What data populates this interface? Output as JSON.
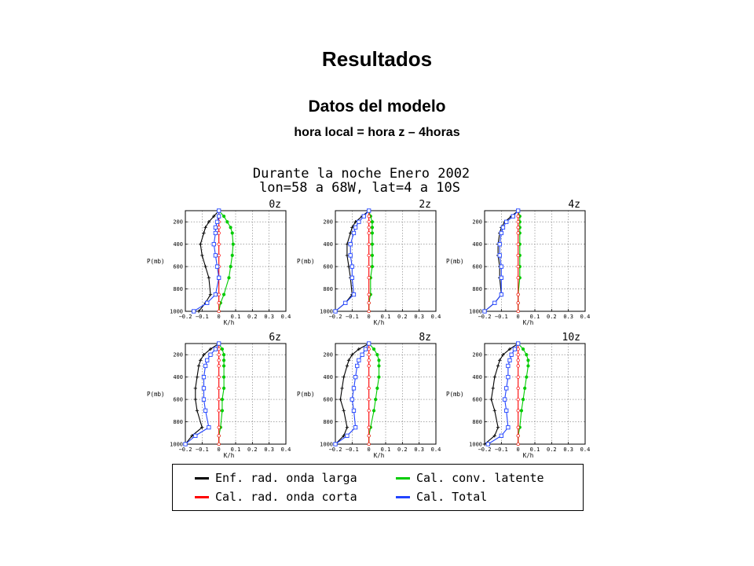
{
  "slide": {
    "title": "Resultados",
    "subtitle": "Datos del modelo",
    "note": "hora local = hora z – 4horas"
  },
  "figure": {
    "header_line1": "Durante la noche Enero 2002",
    "header_line2": "lon=58 a 68W, lat=4 a 10S"
  },
  "legend": {
    "items": [
      {
        "label": "Enf. rad. onda larga",
        "color": "#000000"
      },
      {
        "label": "Cal. conv. latente",
        "color": "#00cc00"
      },
      {
        "label": "Cal. rad. onda corta",
        "color": "#ff0000"
      },
      {
        "label": "Cal. Total",
        "color": "#2244ff"
      }
    ]
  },
  "chart_data": {
    "type": "line",
    "xlabel": "K/h",
    "ylabel": "P(mb)",
    "xlim": [
      -0.2,
      0.4
    ],
    "xticks": [
      -0.2,
      -0.1,
      0,
      0.1,
      0.2,
      0.3,
      0.4
    ],
    "xtick_labels": [
      "−0.2",
      "−0.1",
      "0",
      "0.1",
      "0.2",
      "0.3",
      "0.4"
    ],
    "ylim": [
      1000,
      100
    ],
    "yticks": [
      200,
      400,
      600,
      800,
      1000
    ],
    "grid": true,
    "pressure_levels": [
      100,
      150,
      200,
      250,
      300,
      400,
      500,
      600,
      700,
      850,
      925,
      1000
    ],
    "series_colors": {
      "longwave": "#000000",
      "latent": "#00cc00",
      "shortwave": "#ff0000",
      "total": "#2244ff"
    },
    "panels": [
      {
        "title": "0z",
        "longwave": [
          0.0,
          -0.03,
          -0.06,
          -0.08,
          -0.09,
          -0.11,
          -0.1,
          -0.08,
          -0.06,
          -0.05,
          -0.08,
          -0.12
        ],
        "latent": [
          0.0,
          0.03,
          0.05,
          0.07,
          0.08,
          0.085,
          0.08,
          0.07,
          0.06,
          0.03,
          0.01,
          0.0
        ],
        "shortwave": [
          0.0,
          0.0,
          0.0,
          0.0,
          0.0,
          0.0,
          0.0,
          0.0,
          0.0,
          0.0,
          0.0,
          0.0
        ],
        "total": [
          0.0,
          0.0,
          -0.01,
          -0.02,
          -0.02,
          -0.03,
          -0.02,
          -0.01,
          0.0,
          -0.02,
          -0.07,
          -0.15
        ]
      },
      {
        "title": "2z",
        "longwave": [
          0.0,
          -0.04,
          -0.08,
          -0.1,
          -0.11,
          -0.13,
          -0.13,
          -0.12,
          -0.11,
          -0.1,
          -0.14,
          -0.2
        ],
        "latent": [
          0.0,
          0.01,
          0.02,
          0.02,
          0.02,
          0.02,
          0.02,
          0.02,
          0.01,
          0.01,
          0.0,
          0.0
        ],
        "shortwave": [
          0.0,
          0.0,
          0.0,
          0.0,
          0.0,
          0.0,
          0.0,
          0.0,
          0.0,
          0.0,
          0.0,
          0.0
        ],
        "total": [
          0.0,
          -0.03,
          -0.06,
          -0.08,
          -0.09,
          -0.11,
          -0.11,
          -0.1,
          -0.1,
          -0.09,
          -0.14,
          -0.2
        ]
      },
      {
        "title": "4z",
        "longwave": [
          0.0,
          -0.04,
          -0.08,
          -0.1,
          -0.11,
          -0.12,
          -0.12,
          -0.11,
          -0.11,
          -0.1,
          -0.14,
          -0.2
        ],
        "latent": [
          0.0,
          0.01,
          0.01,
          0.01,
          0.01,
          0.01,
          0.01,
          0.01,
          0.01,
          0.0,
          0.0,
          0.0
        ],
        "shortwave": [
          0.0,
          0.0,
          0.0,
          0.0,
          0.0,
          0.0,
          0.0,
          0.0,
          0.0,
          0.0,
          0.0,
          0.0
        ],
        "total": [
          0.0,
          -0.03,
          -0.07,
          -0.09,
          -0.1,
          -0.11,
          -0.11,
          -0.1,
          -0.1,
          -0.1,
          -0.14,
          -0.2
        ]
      },
      {
        "title": "6z",
        "longwave": [
          0.0,
          -0.05,
          -0.09,
          -0.11,
          -0.12,
          -0.13,
          -0.14,
          -0.14,
          -0.13,
          -0.1,
          -0.16,
          -0.2
        ],
        "latent": [
          0.0,
          0.02,
          0.03,
          0.03,
          0.03,
          0.03,
          0.03,
          0.02,
          0.02,
          0.01,
          0.0,
          0.0
        ],
        "shortwave": [
          0.0,
          0.0,
          0.0,
          0.0,
          0.0,
          0.0,
          0.0,
          0.0,
          0.0,
          0.0,
          0.0,
          0.0
        ],
        "total": [
          0.0,
          -0.02,
          -0.05,
          -0.07,
          -0.08,
          -0.09,
          -0.09,
          -0.09,
          -0.08,
          -0.06,
          -0.14,
          -0.2
        ]
      },
      {
        "title": "8z",
        "longwave": [
          0.0,
          -0.06,
          -0.1,
          -0.12,
          -0.13,
          -0.15,
          -0.16,
          -0.17,
          -0.15,
          -0.13,
          -0.15,
          -0.2
        ],
        "latent": [
          0.0,
          0.03,
          0.05,
          0.06,
          0.06,
          0.06,
          0.05,
          0.04,
          0.03,
          0.01,
          0.0,
          0.0
        ],
        "shortwave": [
          0.0,
          0.0,
          0.0,
          0.0,
          0.0,
          0.0,
          0.0,
          0.0,
          0.0,
          0.0,
          0.0,
          0.0
        ],
        "total": [
          0.0,
          -0.02,
          -0.04,
          -0.06,
          -0.07,
          -0.08,
          -0.09,
          -0.1,
          -0.09,
          -0.08,
          -0.13,
          -0.2
        ]
      },
      {
        "title": "10z",
        "longwave": [
          0.0,
          -0.05,
          -0.09,
          -0.11,
          -0.12,
          -0.14,
          -0.15,
          -0.16,
          -0.14,
          -0.12,
          -0.14,
          -0.2
        ],
        "latent": [
          0.0,
          0.03,
          0.05,
          0.06,
          0.06,
          0.05,
          0.04,
          0.03,
          0.02,
          0.01,
          0.0,
          0.0
        ],
        "shortwave": [
          0.0,
          0.0,
          0.0,
          0.0,
          0.0,
          0.0,
          0.0,
          0.0,
          0.0,
          0.0,
          0.0,
          0.0
        ],
        "total": [
          0.0,
          -0.02,
          -0.04,
          -0.05,
          -0.06,
          -0.06,
          -0.07,
          -0.08,
          -0.07,
          -0.06,
          -0.1,
          -0.18
        ]
      }
    ]
  }
}
